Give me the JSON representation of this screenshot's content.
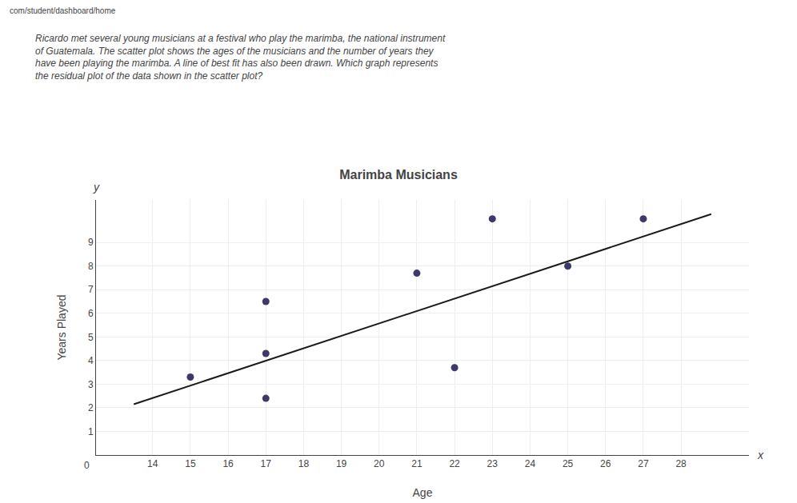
{
  "chart_data": {
    "type": "scatter",
    "title": "Marimba Musicians",
    "xlabel": "Age",
    "ylabel": "Years Played",
    "series": [
      {
        "type": "scatter",
        "color": "#3d3a6b",
        "marker": "circle",
        "x": [
          15,
          17,
          17,
          17,
          21,
          22,
          23,
          25,
          27
        ],
        "values": [
          3.3,
          4.3,
          2.4,
          6.5,
          7.7,
          3.7,
          10.0,
          8.0,
          10.0
        ]
      },
      {
        "type": "line",
        "color": "#1a1a1a",
        "line_style": "solid",
        "x": [
          13.5,
          28.8
        ],
        "values": [
          2.15,
          10.2
        ]
      }
    ],
    "xlim": [
      12.5,
      29.8
    ],
    "ylim": [
      0,
      10.8
    ],
    "xticks": [
      14,
      15,
      16,
      17,
      18,
      19,
      20,
      21,
      22,
      23,
      24,
      25,
      26,
      27,
      28
    ],
    "yticks": [
      1,
      2,
      3,
      4,
      5,
      6,
      7,
      8,
      9
    ],
    "grid": true,
    "annotations": [
      "com/student/dashboard/home",
      "Ricardo met several young musicians at a festival who play the marimba, the national instrument\nof Guatemala. The scatter plot shows the ages of the musicians and the number of years they\nhave been playing the marimba. A line of best fit has also been drawn. Which graph represents\nthe residual plot of the data shown in the scatter plot?",
      "y",
      "x",
      "0"
    ]
  }
}
